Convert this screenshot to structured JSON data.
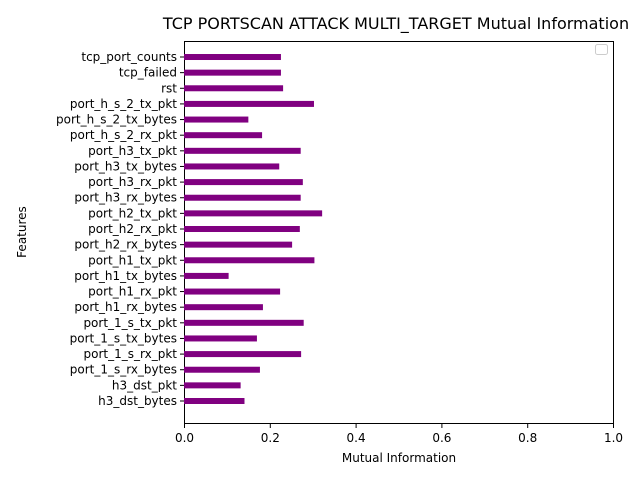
{
  "chart_data": {
    "type": "bar",
    "orientation": "horizontal",
    "title": "TCP PORTSCAN ATTACK MULTI_TARGET Mutual Information",
    "xlabel": "Mutual Information",
    "ylabel": "Features",
    "xlim": [
      0,
      1.0
    ],
    "xticks": [
      "0.0",
      "0.2",
      "0.4",
      "0.6",
      "0.8",
      "1.0"
    ],
    "bar_color": "#800080",
    "legend": "top-right",
    "grid": false,
    "categories": [
      "h3_dst_bytes",
      "h3_dst_pkt",
      "port_1_s_rx_bytes",
      "port_1_s_rx_pkt",
      "port_1_s_tx_bytes",
      "port_1_s_tx_pkt",
      "port_h1_rx_bytes",
      "port_h1_rx_pkt",
      "port_h1_tx_bytes",
      "port_h1_tx_pkt",
      "port_h2_rx_bytes",
      "port_h2_rx_pkt",
      "port_h2_tx_pkt",
      "port_h3_rx_bytes",
      "port_h3_rx_pkt",
      "port_h3_tx_bytes",
      "port_h3_tx_pkt",
      "port_h_s_2_rx_pkt",
      "port_h_s_2_tx_bytes",
      "port_h_s_2_tx_pkt",
      "rst",
      "tcp_failed",
      "tcp_port_counts"
    ],
    "values": [
      0.141,
      0.132,
      0.177,
      0.273,
      0.17,
      0.279,
      0.184,
      0.224,
      0.104,
      0.304,
      0.252,
      0.27,
      0.322,
      0.272,
      0.277,
      0.222,
      0.272,
      0.182,
      0.15,
      0.303,
      0.231,
      0.226,
      0.226
    ]
  }
}
